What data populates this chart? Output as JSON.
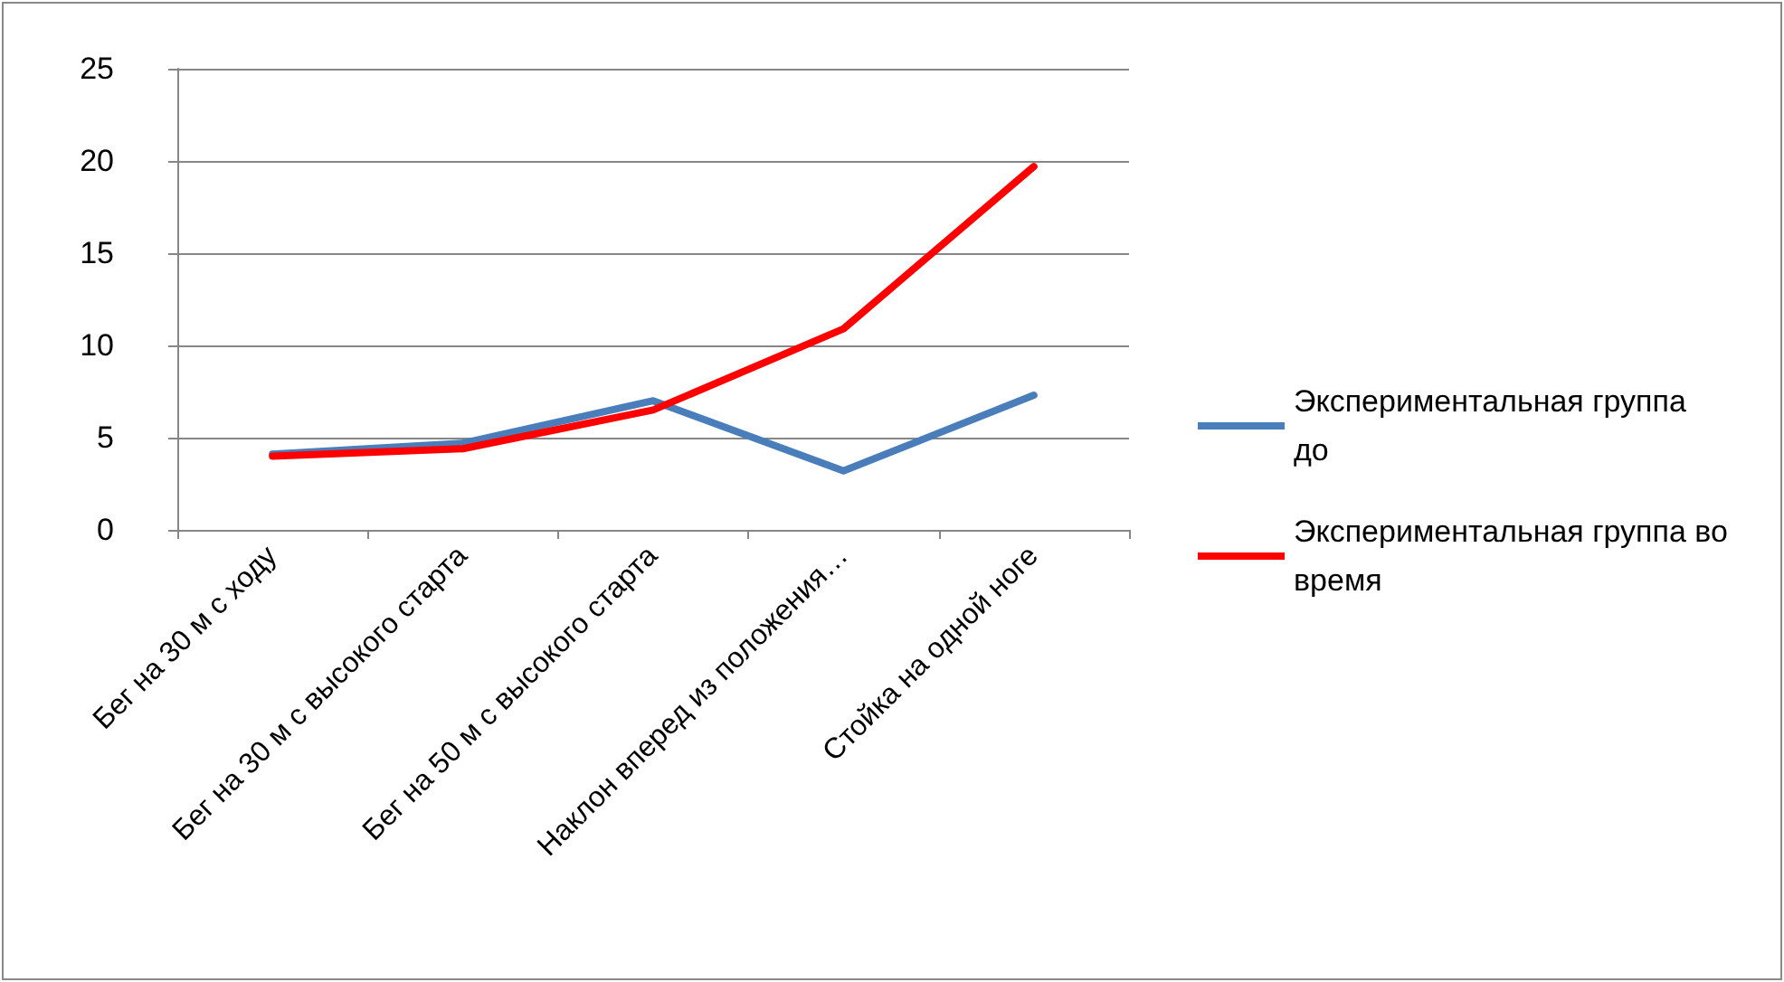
{
  "chart_data": {
    "type": "line",
    "categories": [
      "Бег на 30 м с ходу",
      "Бег на 30 м с высокого старта",
      "Бег на 50 м с высокого старта",
      "Наклон вперед из положения…",
      "Стойка на одной ноге"
    ],
    "series": [
      {
        "name": "Экспериментальная группа до",
        "color": "#4a7ebb",
        "values": [
          4.1,
          4.7,
          7.0,
          3.2,
          7.3
        ]
      },
      {
        "name": "Экспериментальная группа во время",
        "color": "#ff0000",
        "values": [
          4.0,
          4.4,
          6.5,
          10.9,
          19.7
        ]
      }
    ],
    "ylim": [
      0,
      25
    ],
    "yticks": [
      0,
      5,
      10,
      15,
      20,
      25
    ],
    "grid": "y",
    "legend": "right",
    "marker": "none",
    "line_style": "solid"
  }
}
